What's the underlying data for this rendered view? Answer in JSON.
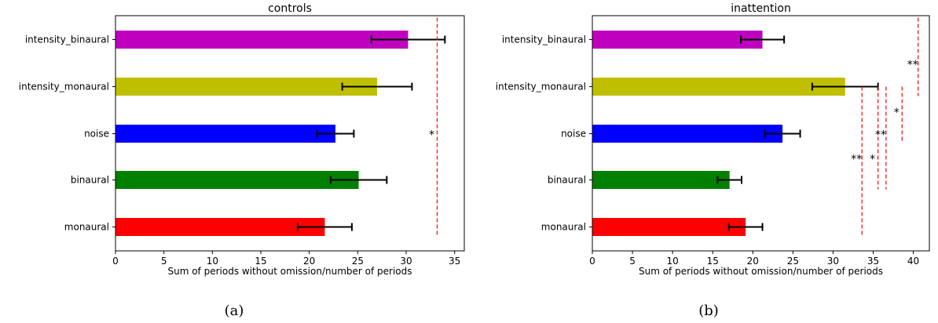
{
  "chart_data": [
    {
      "type": "bar",
      "orientation": "horizontal",
      "title": "controls",
      "caption": "(a)",
      "xlabel": "Sum of periods without omission/number of periods",
      "ylabel": "",
      "xlim": [
        0,
        36
      ],
      "xticks": [
        0,
        5,
        10,
        15,
        20,
        25,
        30,
        35
      ],
      "categories": [
        "monaural",
        "binaural",
        "noise",
        "intensity_monaural",
        "intensity_binaural"
      ],
      "values": [
        21.6,
        25.1,
        22.7,
        27.0,
        30.2
      ],
      "errors": [
        2.8,
        2.9,
        1.9,
        3.6,
        3.8
      ],
      "colors": [
        "#ff0000",
        "#008000",
        "#0000ff",
        "#bfbf00",
        "#bf00bf"
      ],
      "significance": [
        {
          "x": 33.2,
          "from": "monaural",
          "to": "intensity_binaural",
          "label": "*",
          "label_at": "noise"
        }
      ],
      "grid": false
    },
    {
      "type": "bar",
      "orientation": "horizontal",
      "title": "inattention",
      "caption": "(b)",
      "xlabel": "Sum of periods without omission/number of periods",
      "ylabel": "",
      "xlim": [
        0,
        42
      ],
      "xticks": [
        0,
        5,
        10,
        15,
        20,
        25,
        30,
        35,
        40
      ],
      "categories": [
        "monaural",
        "binaural",
        "noise",
        "intensity_monaural",
        "intensity_binaural"
      ],
      "values": [
        19.1,
        17.1,
        23.7,
        31.5,
        21.2
      ],
      "errors": [
        2.1,
        1.5,
        2.2,
        4.1,
        2.7
      ],
      "colors": [
        "#ff0000",
        "#008000",
        "#0000ff",
        "#bfbf00",
        "#bf00bf"
      ],
      "significance": [
        {
          "x": 33.6,
          "from": "monaural",
          "to": "intensity_monaural",
          "label": "**",
          "label_at": "binaural"
        },
        {
          "x": 35.6,
          "from": "binaural",
          "to": "intensity_monaural",
          "label": "*",
          "label_at": "binaural"
        },
        {
          "x": 36.6,
          "from": "binaural",
          "to": "intensity_monaural",
          "label": "**",
          "label_at": "noise"
        },
        {
          "x": 38.6,
          "from": "noise",
          "to": "intensity_monaural",
          "label": "*",
          "label_at": "noise_upper"
        },
        {
          "x": 40.6,
          "from": "intensity_monaural",
          "to": "intensity_binaural",
          "label": "**",
          "label_at": "between_top"
        }
      ],
      "grid": false
    }
  ]
}
